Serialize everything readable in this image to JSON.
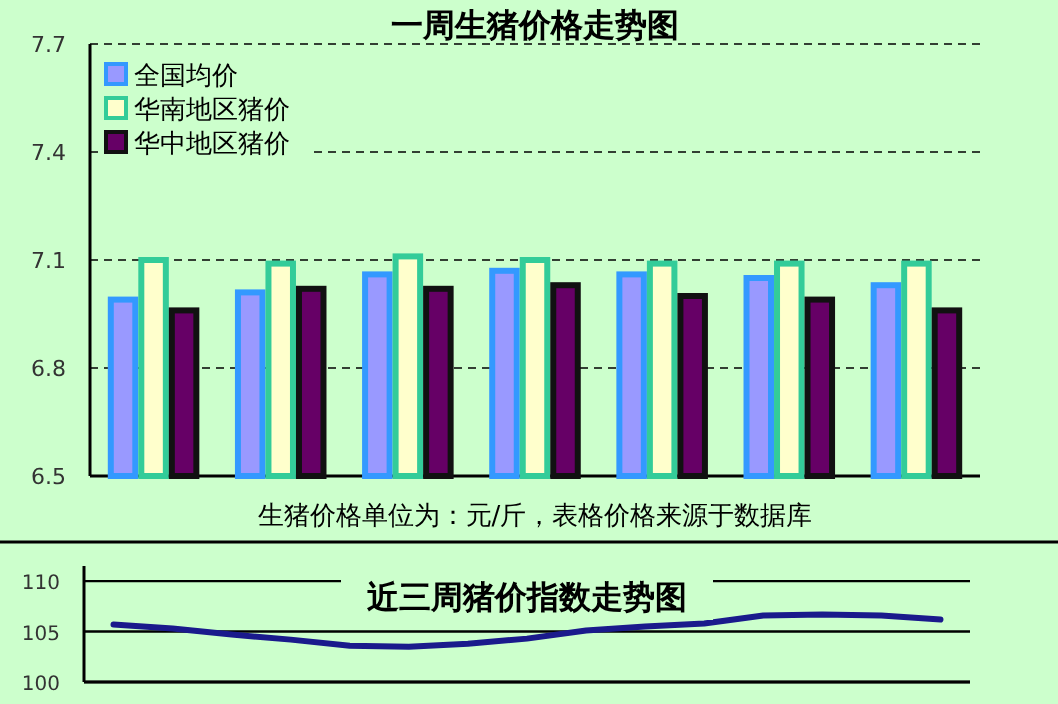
{
  "chart_data": [
    {
      "type": "bar",
      "title": "一周生猪价格走势图",
      "categories": [
        null,
        null,
        null,
        null,
        null,
        null,
        null
      ],
      "series": [
        {
          "name": "全国均价",
          "color": "#9999ff",
          "values": [
            6.99,
            7.01,
            7.06,
            7.07,
            7.06,
            7.05,
            7.03
          ]
        },
        {
          "name": "华南地区猪价",
          "color": "#ffffcc",
          "values": [
            7.1,
            7.09,
            7.11,
            7.1,
            7.09,
            7.09,
            7.09
          ]
        },
        {
          "name": "华中地区猪价",
          "color": "#660066",
          "values": [
            6.96,
            7.02,
            7.02,
            7.03,
            7.0,
            6.99,
            6.96
          ]
        }
      ],
      "ylim": [
        6.5,
        7.7
      ],
      "yticks": [
        6.5,
        6.8,
        7.1,
        7.4,
        7.7
      ],
      "grid": "y",
      "line_style": "dashed",
      "legend": "top left",
      "annotations": [
        "生猪价格单位为：元/斤，表格价格来源于数据库"
      ]
    },
    {
      "type": "line",
      "title": "近三周猪价指数走势图",
      "categories": [
        null,
        null,
        null,
        null,
        null,
        null,
        null,
        null,
        null,
        null,
        null,
        null,
        null,
        null,
        null
      ],
      "series": [
        {
          "color": "#1a1a8c",
          "values": [
            105.7,
            105.3,
            104.7,
            104.2,
            103.6,
            103.5,
            103.8,
            104.3,
            105.1,
            105.5,
            105.8,
            106.6,
            106.7,
            106.6,
            106.2
          ]
        }
      ],
      "ylim": [
        100,
        111.5
      ],
      "yticks": [
        100,
        105,
        110
      ],
      "grid": "y",
      "marker": "none"
    }
  ]
}
